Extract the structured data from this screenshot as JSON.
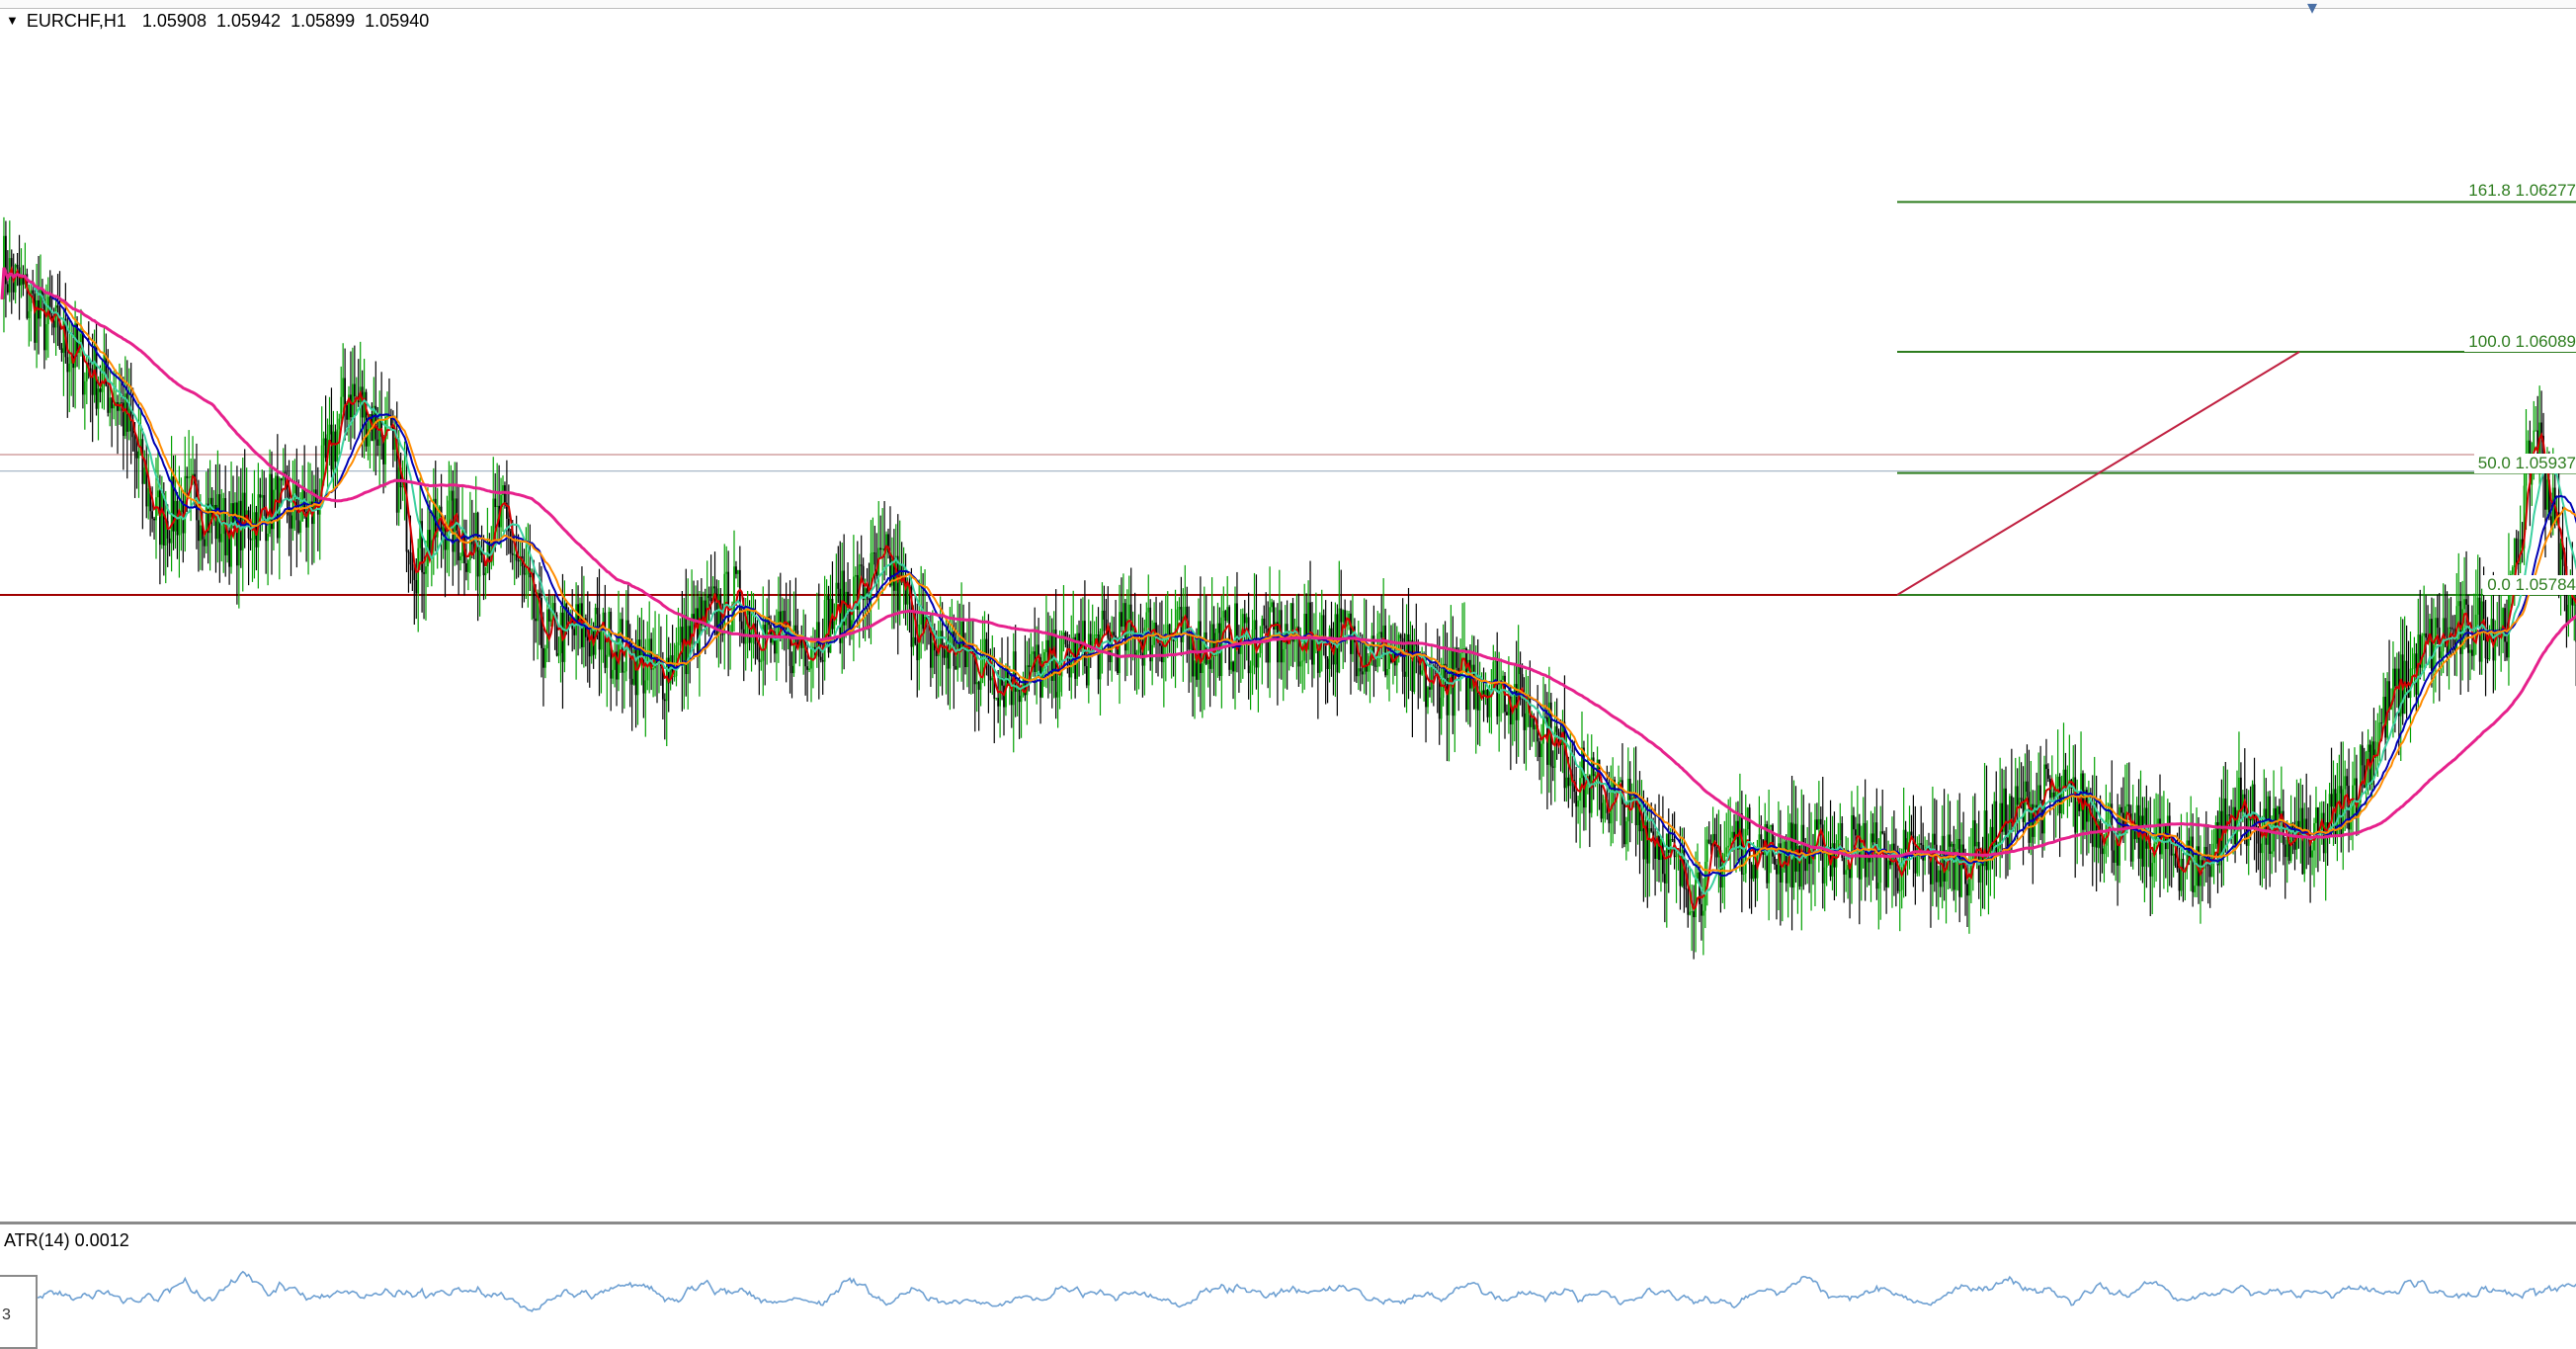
{
  "header": {
    "symbol": "EURCHF,H1",
    "open": "1.05908",
    "high": "1.05942",
    "low": "1.05899",
    "close": "1.05940"
  },
  "fibonacci": {
    "levels": [
      {
        "label": "161.8 1.06277",
        "price": 1.06277
      },
      {
        "label": "100.0 1.06089",
        "price": 1.06089
      },
      {
        "label": "50.0 1.05937",
        "price": 1.05937
      },
      {
        "label": "0.0 1.05784",
        "price": 1.05784
      }
    ]
  },
  "indicator": {
    "label": "ATR(14) 0.0012"
  },
  "corner_box": {
    "text": "3"
  },
  "colors": {
    "candle_up": "#00a000",
    "candle_down": "#000000",
    "ma_red": "#d40000",
    "ma_teal": "#3cd0a0",
    "ma_blue": "#0000b4",
    "ma_orange": "#ff8c00",
    "ma_magenta": "#e6218c",
    "fibo": "#2e7d1f",
    "hline_red": "#a00000",
    "hline_light": "#d29090",
    "atr_line": "#6ea0d2",
    "trendline": "#c02040"
  },
  "chart_data": {
    "type": "candlestick",
    "symbol": "EURCHF",
    "timeframe": "H1",
    "price_range": [
      1.0555,
      1.0645
    ],
    "anchors": [
      [
        0,
        1.062
      ],
      [
        20,
        1.0613
      ],
      [
        40,
        1.0608
      ],
      [
        60,
        1.0603
      ],
      [
        80,
        1.0588
      ],
      [
        100,
        1.059
      ],
      [
        120,
        1.0586
      ],
      [
        140,
        1.059
      ],
      [
        160,
        1.0588
      ],
      [
        180,
        1.0604
      ],
      [
        200,
        1.0598
      ],
      [
        215,
        1.0583
      ],
      [
        230,
        1.0588
      ],
      [
        245,
        1.0584
      ],
      [
        260,
        1.0588
      ],
      [
        280,
        1.0573
      ],
      [
        300,
        1.0574
      ],
      [
        320,
        1.0572
      ],
      [
        340,
        1.0568
      ],
      [
        360,
        1.0574
      ],
      [
        380,
        1.0578
      ],
      [
        400,
        1.0572
      ],
      [
        420,
        1.0573
      ],
      [
        440,
        1.0578
      ],
      [
        460,
        1.0582
      ],
      [
        480,
        1.0572
      ],
      [
        500,
        1.0571
      ],
      [
        520,
        1.0568
      ],
      [
        540,
        1.0569
      ],
      [
        560,
        1.0571
      ],
      [
        580,
        1.0573
      ],
      [
        600,
        1.0574
      ],
      [
        620,
        1.0572
      ],
      [
        640,
        1.0573
      ],
      [
        660,
        1.0573
      ],
      [
        680,
        1.0573
      ],
      [
        700,
        1.0573
      ],
      [
        720,
        1.0571
      ],
      [
        740,
        1.0567
      ],
      [
        760,
        1.0568
      ],
      [
        780,
        1.0567
      ],
      [
        800,
        1.0562
      ],
      [
        820,
        1.0555
      ],
      [
        840,
        1.0552
      ],
      [
        860,
        1.0548
      ],
      [
        870,
        1.0543
      ],
      [
        880,
        1.0542
      ],
      [
        900,
        1.0548
      ],
      [
        920,
        1.0546
      ],
      [
        940,
        1.0546
      ],
      [
        960,
        1.0547
      ],
      [
        980,
        1.0545
      ],
      [
        1000,
        1.0545
      ],
      [
        1020,
        1.0545
      ],
      [
        1040,
        1.055
      ],
      [
        1060,
        1.0553
      ],
      [
        1080,
        1.0552
      ],
      [
        1100,
        1.0548
      ],
      [
        1120,
        1.0547
      ],
      [
        1140,
        1.0544
      ],
      [
        1160,
        1.0552
      ],
      [
        1180,
        1.0548
      ],
      [
        1200,
        1.0547
      ],
      [
        1220,
        1.0554
      ],
      [
        1240,
        1.0565
      ],
      [
        1260,
        1.0572
      ],
      [
        1280,
        1.0574
      ],
      [
        1300,
        1.0575
      ],
      [
        1315,
        1.06
      ],
      [
        1330,
        1.058
      ],
      [
        1350,
        1.0566
      ],
      [
        1370,
        1.0572
      ],
      [
        1385,
        1.0578
      ],
      [
        1398,
        1.0604
      ],
      [
        1406,
        1.0592
      ]
    ],
    "moving_averages": [
      {
        "color": "red",
        "smooth": 5
      },
      {
        "color": "teal",
        "smooth": 14
      },
      {
        "color": "blue",
        "smooth": 25
      },
      {
        "color": "orange",
        "smooth": 30
      },
      {
        "color": "magenta",
        "smooth": 110
      }
    ],
    "horizontal_lines": [
      1.05937,
      1.05784,
      1.0596
    ],
    "atr": {
      "period": 14,
      "value": 0.0012
    }
  }
}
